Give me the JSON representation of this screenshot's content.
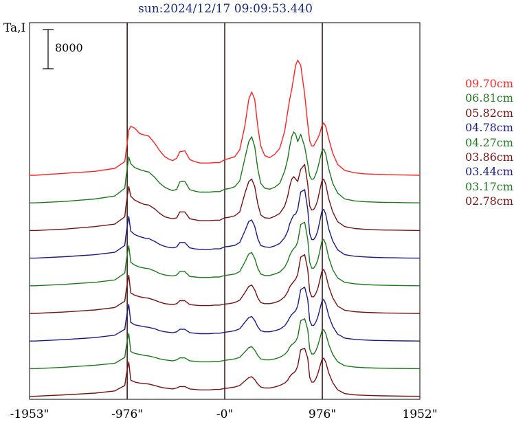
{
  "chart_data": {
    "type": "line",
    "title": "sun:2024/12/17 09:09:53.440",
    "ylabel": "Ta,I",
    "scale_bar_label": "8000",
    "x_ticks": [
      -1953,
      -976,
      0,
      976,
      1952
    ],
    "x_tick_labels": [
      "-1953\"",
      "-976\"",
      "-0\"",
      "976\"",
      "1952\""
    ],
    "xlim": [
      -1953,
      1952
    ],
    "vertical_lines": [
      -976,
      0,
      976
    ],
    "grid": false,
    "legend_position": "right",
    "x": [
      -1953,
      -1900,
      -1600,
      -1300,
      -1100,
      -1000,
      -990,
      -976,
      -960,
      -940,
      -900,
      -850,
      -800,
      -760,
      -700,
      -650,
      -600,
      -560,
      -520,
      -480,
      -450,
      -400,
      -350,
      -300,
      -250,
      -200,
      -150,
      -100,
      -50,
      0,
      40,
      100,
      150,
      200,
      240,
      270,
      300,
      330,
      360,
      400,
      450,
      500,
      550,
      600,
      630,
      650,
      670,
      690,
      710,
      730,
      760,
      800,
      830,
      850,
      870,
      890,
      910,
      930,
      950,
      970,
      990,
      1010,
      1040,
      1080,
      1130,
      1200,
      1300,
      1400,
      1500,
      1600,
      1700,
      1800,
      1952
    ],
    "series": [
      {
        "name": "09.70cm",
        "color": "#ff2020",
        "values": [
          0,
          0,
          400,
          800,
          1400,
          2800,
          4500,
          6500,
          9200,
          10000,
          9600,
          8500,
          8200,
          8000,
          6500,
          5000,
          3800,
          3300,
          3000,
          3500,
          4800,
          5000,
          3200,
          2800,
          2500,
          2500,
          2500,
          2600,
          2600,
          3200,
          3400,
          3800,
          5200,
          10000,
          15500,
          17000,
          15500,
          10000,
          6000,
          4000,
          3600,
          4300,
          5500,
          9000,
          13000,
          15500,
          17500,
          20000,
          22500,
          23500,
          22500,
          16500,
          10500,
          7000,
          6000,
          6000,
          6800,
          7500,
          8500,
          10000,
          10700,
          10000,
          7500,
          4500,
          2200,
          1000,
          500,
          300,
          200,
          150,
          100,
          50,
          0
        ]
      },
      {
        "name": "06.81cm",
        "color": "#1a7a1a",
        "values": [
          0,
          0,
          300,
          800,
          1400,
          3000,
          5000,
          7000,
          9400,
          8000,
          7200,
          6800,
          6500,
          6300,
          5200,
          4000,
          3200,
          2800,
          2500,
          2800,
          4300,
          4400,
          2700,
          2400,
          2200,
          2200,
          2200,
          2300,
          2300,
          2800,
          2900,
          3300,
          4500,
          9000,
          12500,
          13500,
          11500,
          7000,
          4000,
          3000,
          2800,
          3200,
          4000,
          6500,
          9000,
          11500,
          13500,
          14500,
          14000,
          12500,
          14000,
          11500,
          8000,
          5500,
          4800,
          4900,
          5800,
          7000,
          8800,
          10500,
          11000,
          10000,
          7000,
          4000,
          2000,
          800,
          400,
          250,
          150,
          100,
          80,
          40,
          0
        ]
      },
      {
        "name": "05.82cm",
        "color": "#7a1010",
        "values": [
          0,
          0,
          300,
          800,
          1300,
          2800,
          4800,
          6800,
          9000,
          7000,
          6200,
          5700,
          5300,
          5200,
          4400,
          3500,
          2800,
          2600,
          2400,
          2600,
          3800,
          3800,
          2400,
          2200,
          2000,
          2000,
          2000,
          2100,
          2100,
          2600,
          2700,
          3000,
          3800,
          7500,
          10000,
          10500,
          9000,
          5500,
          3200,
          2600,
          2500,
          2900,
          3500,
          5000,
          7000,
          9000,
          10500,
          11000,
          10500,
          10000,
          12500,
          13500,
          9500,
          5000,
          4200,
          4300,
          5000,
          6200,
          8200,
          10000,
          10500,
          9500,
          6500,
          3800,
          1800,
          800,
          400,
          250,
          150,
          100,
          80,
          40,
          0
        ]
      },
      {
        "name": "04.78cm",
        "color": "#1a1a8a",
        "values": [
          0,
          0,
          300,
          700,
          1200,
          2600,
          4500,
          6500,
          8500,
          5500,
          4800,
          4400,
          4100,
          4000,
          3400,
          2800,
          2400,
          2200,
          2100,
          2300,
          3200,
          3200,
          2100,
          1900,
          1800,
          1800,
          1800,
          1900,
          1900,
          2300,
          2400,
          2600,
          3200,
          5500,
          7500,
          7800,
          6500,
          4000,
          2600,
          2300,
          2200,
          2500,
          3000,
          4200,
          5500,
          7000,
          8000,
          8800,
          9000,
          10000,
          13500,
          14000,
          10000,
          5000,
          3800,
          3800,
          4400,
          5500,
          7500,
          9500,
          10000,
          9000,
          6000,
          3500,
          1700,
          700,
          400,
          250,
          150,
          100,
          70,
          30,
          0
        ]
      },
      {
        "name": "04.27cm",
        "color": "#1a7a1a",
        "values": [
          0,
          0,
          300,
          700,
          1200,
          2600,
          4400,
          6300,
          8200,
          4800,
          4200,
          3800,
          3600,
          3500,
          3000,
          2500,
          2200,
          2100,
          2000,
          2200,
          2900,
          2900,
          1900,
          1800,
          1700,
          1700,
          1700,
          1800,
          1800,
          2100,
          2200,
          2400,
          2900,
          4800,
          6500,
          6800,
          5600,
          3600,
          2400,
          2100,
          2100,
          2400,
          2800,
          3800,
          5000,
          6200,
          7000,
          7600,
          8000,
          9000,
          12500,
          13000,
          9500,
          4800,
          3600,
          3600,
          4200,
          5200,
          7000,
          9000,
          9500,
          8500,
          5800,
          3300,
          1600,
          700,
          400,
          250,
          150,
          100,
          70,
          30,
          0
        ]
      },
      {
        "name": "03.86cm",
        "color": "#7a1010",
        "values": [
          0,
          0,
          300,
          700,
          1200,
          2500,
          4200,
          6000,
          7800,
          4200,
          3700,
          3400,
          3200,
          3100,
          2700,
          2300,
          2000,
          1900,
          1800,
          2000,
          2600,
          2600,
          1800,
          1700,
          1600,
          1600,
          1600,
          1700,
          1700,
          1900,
          2000,
          2200,
          2700,
          4200,
          5500,
          5800,
          4800,
          3200,
          2200,
          2000,
          2000,
          2200,
          2600,
          3400,
          4400,
          5400,
          6000,
          6500,
          7000,
          8000,
          11500,
          12000,
          9000,
          4500,
          3400,
          3400,
          4000,
          5000,
          6700,
          8500,
          9000,
          8000,
          5500,
          3200,
          1500,
          650,
          350,
          220,
          140,
          90,
          60,
          30,
          0
        ]
      },
      {
        "name": "03.44cm",
        "color": "#1a1a8a",
        "values": [
          0,
          0,
          300,
          700,
          1200,
          2400,
          4000,
          5800,
          7500,
          3800,
          3300,
          3100,
          2900,
          2800,
          2500,
          2100,
          1900,
          1800,
          1700,
          1900,
          2400,
          2400,
          1700,
          1600,
          1500,
          1500,
          1500,
          1600,
          1600,
          1800,
          1900,
          2100,
          2500,
          3800,
          4800,
          5000,
          4200,
          2900,
          2100,
          1900,
          1900,
          2100,
          2400,
          3100,
          4000,
          4800,
          5400,
          5800,
          6200,
          7200,
          10500,
          11000,
          8500,
          4200,
          3200,
          3200,
          3800,
          4800,
          6400,
          8000,
          8500,
          7600,
          5200,
          3000,
          1400,
          600,
          330,
          210,
          130,
          90,
          60,
          30,
          0
        ]
      },
      {
        "name": "03.17cm",
        "color": "#1a7a1a",
        "values": [
          0,
          0,
          300,
          700,
          1100,
          2300,
          3900,
          5600,
          7200,
          3500,
          3100,
          2900,
          2700,
          2600,
          2300,
          2000,
          1800,
          1700,
          1600,
          1800,
          2200,
          2200,
          1600,
          1500,
          1400,
          1400,
          1400,
          1500,
          1500,
          1700,
          1800,
          2000,
          2300,
          3400,
          4300,
          4500,
          3800,
          2700,
          2000,
          1800,
          1800,
          2000,
          2300,
          2900,
          3600,
          4400,
          4900,
          5200,
          5600,
          6500,
          9800,
          10200,
          8000,
          4000,
          3000,
          3000,
          3600,
          4600,
          6100,
          7600,
          8000,
          7200,
          5000,
          2900,
          1400,
          600,
          320,
          200,
          130,
          80,
          60,
          30,
          0
        ]
      },
      {
        "name": "02.78cm",
        "color": "#7a1010",
        "values": [
          0,
          0,
          300,
          650,
          1100,
          2200,
          3700,
          5400,
          7000,
          3300,
          2900,
          2700,
          2600,
          2500,
          2200,
          1900,
          1700,
          1600,
          1500,
          1700,
          2000,
          2000,
          1500,
          1400,
          1300,
          1300,
          1300,
          1400,
          1400,
          1600,
          1700,
          1900,
          2200,
          3100,
          3800,
          4000,
          3400,
          2500,
          1900,
          1700,
          1700,
          1900,
          2200,
          2700,
          3300,
          4000,
          4500,
          4800,
          5200,
          6200,
          9500,
          9800,
          7800,
          3900,
          2900,
          2900,
          3500,
          4500,
          6000,
          7400,
          7800,
          7000,
          4800,
          2800,
          1300,
          550,
          300,
          190,
          120,
          80,
          55,
          25,
          0
        ]
      }
    ]
  }
}
